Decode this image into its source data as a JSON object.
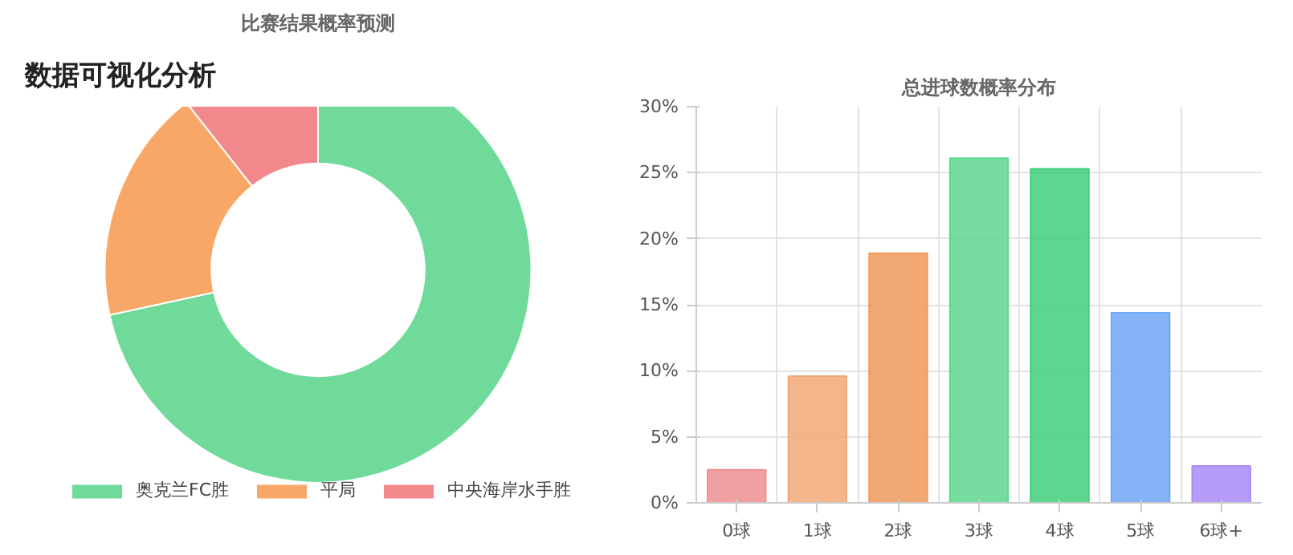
{
  "chart_data": [
    {
      "type": "donut",
      "title": "比赛结果概率预测",
      "annotations": [
        "数据可视化分析"
      ],
      "categories": [
        "奥克兰FC胜",
        "平局",
        "中央海岸水手胜"
      ],
      "values": [
        71.6,
        17.8,
        10.6
      ],
      "colors": [
        "#5fd68e",
        "#f79d57",
        "#f07b7e"
      ],
      "legend": "bottom"
    },
    {
      "type": "bar",
      "title": "总进球数概率分布",
      "categories": [
        "0球",
        "1球",
        "2球",
        "3球",
        "4球",
        "5球",
        "6球+"
      ],
      "values": [
        2.5,
        9.6,
        18.9,
        26.1,
        25.3,
        14.4,
        2.8
      ],
      "colors": [
        "#ee8f92",
        "#f2a877",
        "#f0995a",
        "#5fd68e",
        "#41cf7c",
        "#6fa6f6",
        "#a98bf8"
      ],
      "ylim": [
        0,
        30
      ],
      "yticks": [
        {
          "value": 0,
          "label": "0%"
        },
        {
          "value": 5,
          "label": "5%"
        },
        {
          "value": 10,
          "label": "10%"
        },
        {
          "value": 15,
          "label": "15%"
        },
        {
          "value": 20,
          "label": "20%"
        },
        {
          "value": 25,
          "label": "25%"
        },
        {
          "value": 30,
          "label": "30%"
        }
      ],
      "grid": true
    }
  ]
}
